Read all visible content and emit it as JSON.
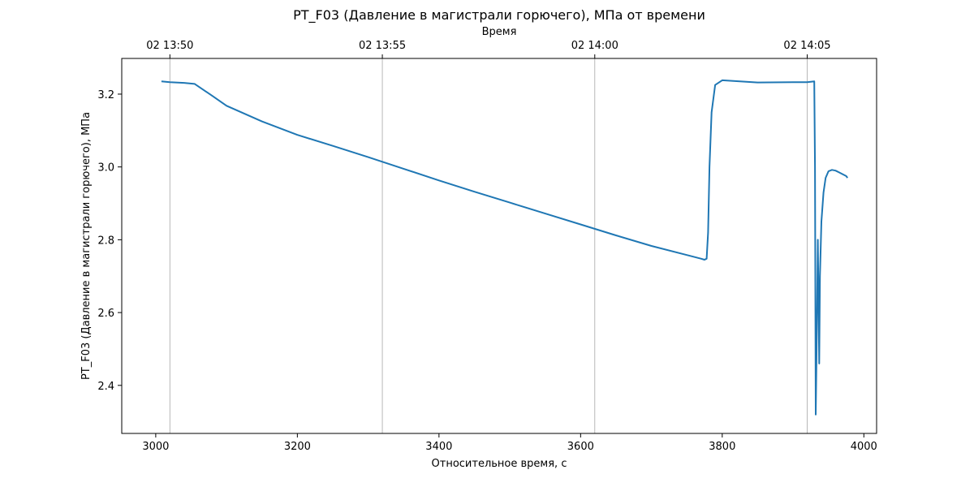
{
  "chart_data": {
    "type": "line",
    "title": "PT_F03 (Давление в магистрали горючего), МПа от времени",
    "xlabel": "Относительное время, с",
    "ylabel": "PT_F03 (Давление в магистрали горючего), МПа",
    "top_xlabel": "Время",
    "xlim": [
      2952,
      4018
    ],
    "ylim": [
      2.268,
      3.298
    ],
    "x_ticks": [
      3000,
      3200,
      3400,
      3600,
      3800,
      4000
    ],
    "y_ticks": [
      2.4,
      2.6,
      2.8,
      3.0,
      3.2
    ],
    "top_ticks": [
      {
        "x": 3020,
        "label": "02 13:50"
      },
      {
        "x": 3320,
        "label": "02 13:55"
      },
      {
        "x": 3620,
        "label": "02 14:00"
      },
      {
        "x": 3920,
        "label": "02 14:05"
      }
    ],
    "vertical_gridlines_at_top_ticks": true,
    "line_color": "#1f77b4",
    "series": [
      {
        "x": [
          3008,
          3020,
          3040,
          3055,
          3080,
          3100,
          3150,
          3200,
          3250,
          3300,
          3350,
          3400,
          3450,
          3500,
          3550,
          3600,
          3650,
          3700,
          3750,
          3770,
          3775,
          3778,
          3780,
          3782,
          3785,
          3790,
          3800,
          3850,
          3900,
          3920,
          3930,
          3931,
          3932,
          3933,
          3934,
          3935,
          3936,
          3937,
          3938,
          3940,
          3943,
          3946,
          3950,
          3955,
          3960,
          3965,
          3970,
          3975,
          3977
        ],
        "y": [
          3.235,
          3.233,
          3.231,
          3.228,
          3.195,
          3.168,
          3.125,
          3.088,
          3.058,
          3.027,
          2.995,
          2.963,
          2.932,
          2.902,
          2.872,
          2.842,
          2.812,
          2.783,
          2.758,
          2.748,
          2.745,
          2.748,
          2.82,
          3.0,
          3.15,
          3.225,
          3.238,
          3.232,
          3.233,
          3.233,
          3.235,
          3.0,
          2.32,
          2.45,
          2.62,
          2.8,
          2.62,
          2.46,
          2.7,
          2.85,
          2.93,
          2.97,
          2.988,
          2.992,
          2.99,
          2.985,
          2.98,
          2.975,
          2.97
        ]
      }
    ]
  }
}
